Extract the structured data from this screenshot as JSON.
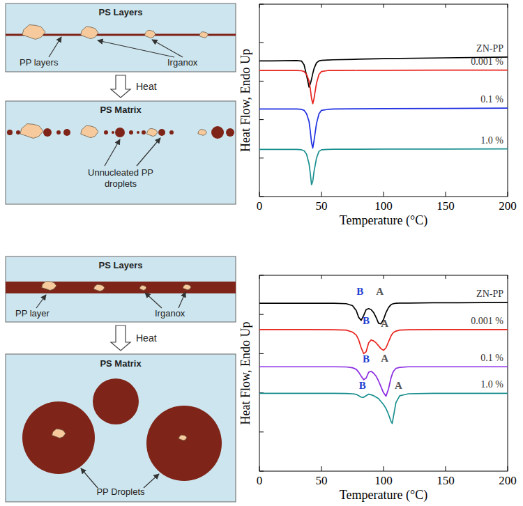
{
  "chart_data": [
    {
      "type": "line",
      "x_label": "Temperature (°C)",
      "y_label": "Heat Flow, Endo Up",
      "x": [
        0,
        10,
        20,
        30,
        34,
        36,
        38,
        40,
        41,
        42,
        43,
        44,
        46,
        48,
        50,
        55,
        60,
        80,
        100,
        150,
        200
      ],
      "xlim": [
        0,
        200
      ],
      "xticks": [
        0,
        50,
        100,
        150,
        200
      ],
      "ylim": [
        0,
        10
      ],
      "yticks": [
        0,
        2,
        4,
        6,
        8,
        10
      ],
      "tick_labels": "x",
      "series": [
        {
          "name": "ZN-PP",
          "color": "#000000",
          "values": [
            7.05,
            7.05,
            7.06,
            7.07,
            7.04,
            6.85,
            6.3,
            5.69,
            5.85,
            6.1,
            6.4,
            6.65,
            6.95,
            7.05,
            7.08,
            7.1,
            7.11,
            7.14,
            7.17,
            7.21,
            7.25
          ]
        },
        {
          "name": "0.001 %",
          "color": "#e8231d",
          "values": [
            6.55,
            6.55,
            6.55,
            6.55,
            6.54,
            6.5,
            6.35,
            6.0,
            5.6,
            5.1,
            4.83,
            5.1,
            5.9,
            6.35,
            6.5,
            6.55,
            6.55,
            6.56,
            6.56,
            6.57,
            6.57
          ]
        },
        {
          "name": "0.1 %",
          "color": "#1f2fe0",
          "values": [
            4.55,
            4.55,
            4.55,
            4.55,
            4.53,
            4.48,
            4.3,
            3.9,
            3.4,
            2.8,
            2.52,
            2.9,
            3.8,
            4.3,
            4.48,
            4.53,
            4.55,
            4.56,
            4.57,
            4.58,
            4.6
          ]
        },
        {
          "name": "1.0 %",
          "color": "#1a8f8f",
          "values": [
            2.45,
            2.45,
            2.45,
            2.45,
            2.43,
            2.38,
            2.2,
            1.7,
            1.2,
            0.62,
            0.8,
            1.3,
            2.0,
            2.35,
            2.43,
            2.45,
            2.46,
            2.46,
            2.47,
            2.47,
            2.48
          ]
        }
      ],
      "annotations": []
    },
    {
      "type": "line",
      "x_label": "Temperature (°C)",
      "y_label": "Heat Flow, Endo Up",
      "x": [
        0,
        20,
        40,
        60,
        70,
        75,
        78,
        80,
        82,
        84,
        86,
        88,
        90,
        92,
        94,
        96,
        98,
        100,
        102,
        104,
        106,
        107,
        108,
        110,
        113,
        120,
        140,
        160,
        200
      ],
      "xlim": [
        0,
        200
      ],
      "xticks": [
        0,
        50,
        100,
        150,
        200
      ],
      "ylim": [
        0,
        10
      ],
      "yticks": [
        0,
        2,
        4,
        6,
        8,
        10
      ],
      "tick_labels": "x",
      "series": [
        {
          "name": "ZN-PP",
          "color": "#000000",
          "values": [
            8.57,
            8.57,
            8.57,
            8.57,
            8.55,
            8.45,
            8.2,
            7.85,
            7.7,
            7.95,
            8.25,
            8.3,
            8.25,
            8.1,
            7.85,
            7.55,
            7.52,
            7.75,
            8.1,
            8.35,
            8.5,
            8.53,
            8.55,
            8.57,
            8.58,
            8.58,
            8.6,
            8.6,
            8.62
          ]
        },
        {
          "name": "0.001 %",
          "color": "#e8231d",
          "values": [
            7.23,
            7.23,
            7.23,
            7.22,
            7.2,
            7.1,
            6.95,
            6.7,
            6.3,
            6.0,
            6.1,
            6.55,
            6.7,
            6.65,
            6.55,
            6.4,
            6.25,
            6.17,
            6.3,
            6.6,
            6.9,
            7.0,
            7.08,
            7.15,
            7.2,
            7.22,
            7.23,
            7.23,
            7.23
          ]
        },
        {
          "name": "0.1 %",
          "color": "#8a2be2",
          "values": [
            5.33,
            5.33,
            5.33,
            5.33,
            5.32,
            5.28,
            5.2,
            5.05,
            4.85,
            4.67,
            4.75,
            5.05,
            5.1,
            5.0,
            4.85,
            4.6,
            4.3,
            4.0,
            3.83,
            4.2,
            4.75,
            4.95,
            5.1,
            5.25,
            5.3,
            5.33,
            5.33,
            5.33,
            5.33
          ]
        },
        {
          "name": "1.0 %",
          "color": "#1a8f8f",
          "values": [
            3.97,
            3.97,
            3.97,
            3.97,
            3.96,
            3.95,
            3.92,
            3.85,
            3.78,
            3.77,
            3.85,
            3.93,
            3.9,
            3.85,
            3.78,
            3.7,
            3.55,
            3.4,
            3.2,
            2.9,
            2.55,
            2.43,
            2.8,
            3.5,
            3.85,
            3.95,
            3.97,
            3.97,
            3.97
          ]
        }
      ],
      "annotations": [
        {
          "text": "B",
          "x": 81,
          "y": 9.0,
          "color": "#1f3fd1"
        },
        {
          "text": "A",
          "x": 97,
          "y": 9.0,
          "color": "#555555"
        },
        {
          "text": "B",
          "x": 86,
          "y": 7.5,
          "color": "#1f3fd1"
        },
        {
          "text": "A",
          "x": 101,
          "y": 7.35,
          "color": "#555555"
        },
        {
          "text": "B",
          "x": 86,
          "y": 5.55,
          "color": "#1f3fd1"
        },
        {
          "text": "A",
          "x": 101,
          "y": 5.6,
          "color": "#555555"
        },
        {
          "text": "B",
          "x": 83,
          "y": 4.2,
          "color": "#1f3fd1"
        },
        {
          "text": "A",
          "x": 112,
          "y": 4.2,
          "color": "#555555"
        }
      ]
    }
  ],
  "diagrams": [
    {
      "box_top": "PS Layers",
      "layer_label": "PP layers",
      "additive_label": "Irganox",
      "process": "Heat",
      "box_bottom": "PS Matrix",
      "result_label": "Unnucleated PP droplets"
    },
    {
      "box_top": "PS Layers",
      "layer_label": "PP layer",
      "additive_label": "Irganox",
      "process": "Heat",
      "box_bottom": "PS Matrix",
      "result_label": "PP Droplets"
    }
  ]
}
